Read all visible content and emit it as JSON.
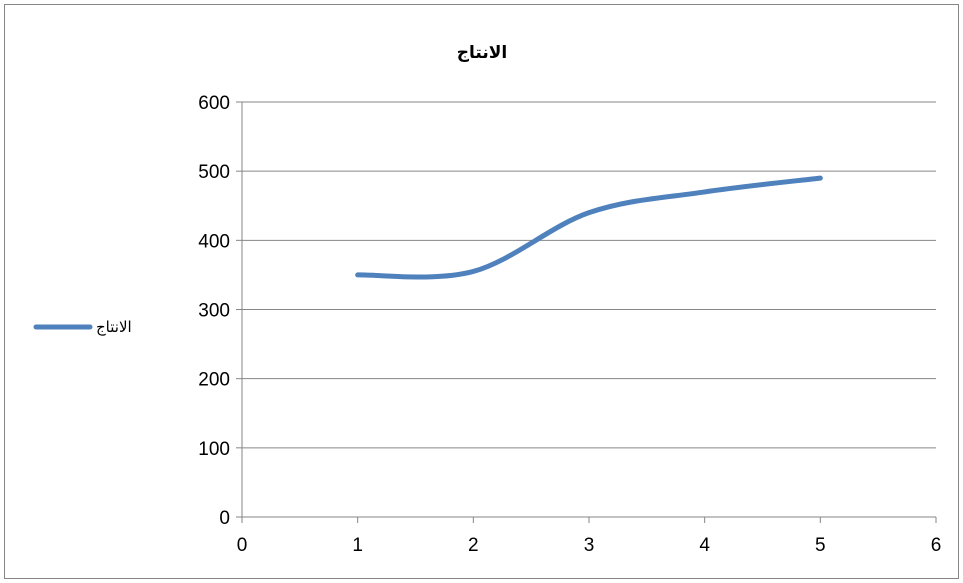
{
  "chart_data": {
    "type": "scatter",
    "title": "الانتاج",
    "xlabel": "",
    "ylabel": "",
    "xlim": [
      0,
      6
    ],
    "ylim": [
      0,
      600
    ],
    "x_ticks": [
      0,
      1,
      2,
      3,
      4,
      5,
      6
    ],
    "y_ticks": [
      0,
      100,
      200,
      300,
      400,
      500,
      600
    ],
    "grid": "horizontal",
    "smooth_lines": true,
    "legend_position": "left",
    "series": [
      {
        "name": "الانتاج",
        "color": "#4F81BD",
        "x": [
          1,
          2,
          3,
          4,
          5
        ],
        "values": [
          350,
          355,
          440,
          470,
          490
        ]
      }
    ]
  }
}
